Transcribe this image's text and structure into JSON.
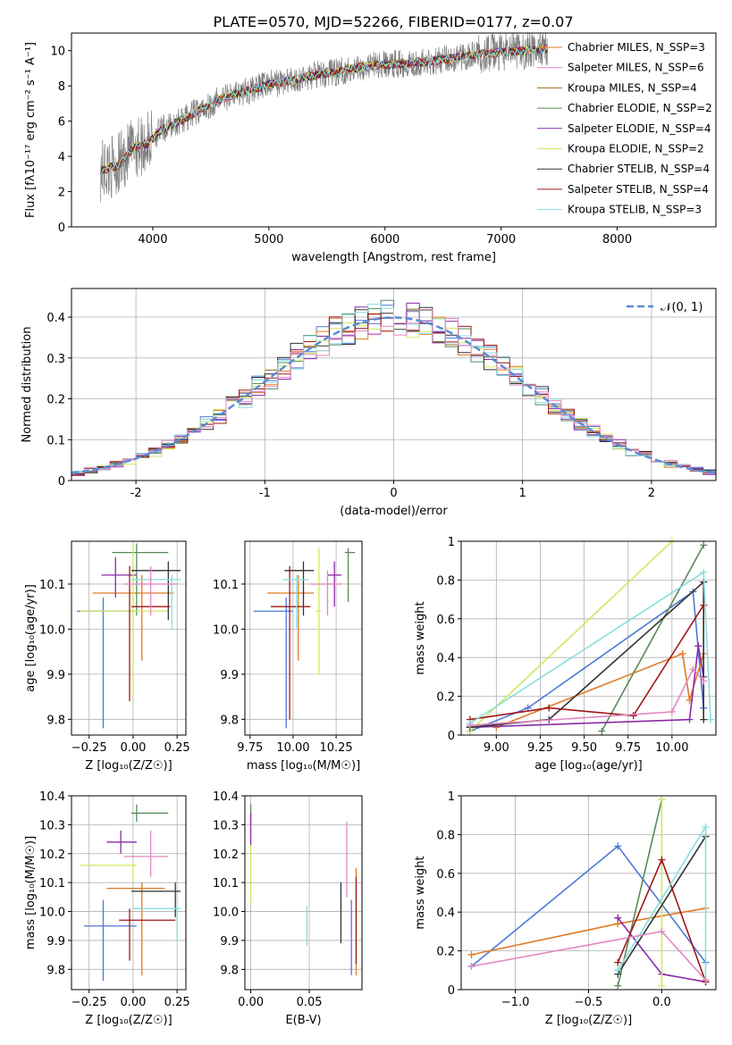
{
  "figure": {
    "title": "PLATE=0570, MJD=52266, FIBERID=0177, z=0.07"
  },
  "colors": [
    "#4f79d6",
    "#e07a24",
    "#5a8a5a",
    "#8a2aa8",
    "#d0e860",
    "#333333",
    "#a01818",
    "#88dede",
    "#e286c2"
  ],
  "legend_colors": [
    "#e07a24",
    "#e286c2",
    "#a86a1c",
    "#5a8a5a",
    "#8a2aa8",
    "#d0e860",
    "#333333",
    "#a01818",
    "#88dede"
  ],
  "chart_data": [
    {
      "id": "spectrum",
      "type": "line",
      "xlabel": "wavelength [Angstrom, rest frame]",
      "ylabel": "Flux [fλ10⁻¹⁷ erg cm⁻² s⁻¹ A⁻¹]",
      "xlim": [
        3300,
        8850
      ],
      "ylim": [
        0,
        11
      ],
      "xticks": [
        4000,
        5000,
        6000,
        7000,
        8000
      ],
      "yticks": [
        0,
        2,
        4,
        6,
        8,
        10
      ],
      "grid": false,
      "legend_position": "top-right",
      "legend": [
        "Chabrier MILES, N_SSP=3",
        "Salpeter MILES, N_SSP=6",
        "Kroupa MILES, N_SSP=4",
        "Chabrier ELODIE, N_SSP=2",
        "Salpeter ELODIE, N_SSP=4",
        "Kroupa ELODIE, N_SSP=2",
        "Chabrier STELIB, N_SSP=4",
        "Salpeter STELIB, N_SSP=4",
        "Kroupa STELIB, N_SSP=3"
      ],
      "continuum": [
        [
          3550,
          3.2
        ],
        [
          3700,
          3.5
        ],
        [
          3850,
          4.6
        ],
        [
          3950,
          4.7
        ],
        [
          4050,
          5.4
        ],
        [
          4200,
          5.9
        ],
        [
          4400,
          6.6
        ],
        [
          4600,
          7.3
        ],
        [
          4800,
          7.7
        ],
        [
          5000,
          8.1
        ],
        [
          5200,
          8.3
        ],
        [
          5400,
          8.6
        ],
        [
          5600,
          8.8
        ],
        [
          5800,
          9.1
        ],
        [
          6000,
          9.2
        ],
        [
          6200,
          9.3
        ],
        [
          6400,
          9.4
        ],
        [
          6600,
          9.6
        ],
        [
          6800,
          9.8
        ],
        [
          7000,
          9.9
        ],
        [
          7200,
          10.0
        ],
        [
          7400,
          10.1
        ]
      ]
    },
    {
      "id": "residuals",
      "type": "histogram",
      "xlabel": "(data-model)/error",
      "ylabel": "Normed distribution",
      "xlim": [
        -2.5,
        2.5
      ],
      "ylim": [
        0,
        0.47
      ],
      "xticks": [
        -2,
        -1,
        0,
        1,
        2
      ],
      "yticks": [
        0.0,
        0.1,
        0.2,
        0.3,
        0.4
      ],
      "grid": true,
      "legend_position": "top-right",
      "legend": [
        "𝒩(0, 1)"
      ],
      "reference_curve": {
        "name": "𝒩(0, 1)",
        "mean": 0,
        "sigma": 1,
        "style": "dashed",
        "color": "#5b8bd6"
      },
      "bin_width": 0.1
    },
    {
      "id": "age_vs_z",
      "type": "scatter_errorbar",
      "xlabel": "Z [log₁₀(Z/Z☉)]",
      "ylabel": "age  [log₁₀(age/yr)]",
      "xlim": [
        -0.35,
        0.3
      ],
      "ylim": [
        9.765,
        10.195
      ],
      "xticks": [
        -0.25,
        0.0,
        0.25
      ],
      "xtick_labels": [
        "−0.25",
        "0.00",
        "0.25"
      ],
      "yticks": [
        9.8,
        9.9,
        10.0,
        10.1
      ],
      "yticks_labels": [
        "9.8",
        "9.9",
        "10.0",
        "10.1"
      ],
      "grid": true,
      "points": [
        {
          "c": 0,
          "x": -0.17,
          "y": 10.04,
          "xlo": -0.32,
          "xhi": 0.02,
          "ylo": 9.78,
          "yhi": 10.07
        },
        {
          "c": 1,
          "x": 0.05,
          "y": 10.08,
          "xlo": -0.23,
          "xhi": 0.23,
          "ylo": 9.93,
          "yhi": 10.12
        },
        {
          "c": 2,
          "x": 0.02,
          "y": 10.17,
          "xlo": -0.12,
          "xhi": 0.2,
          "ylo": 10.03,
          "yhi": 10.19
        },
        {
          "c": 3,
          "x": -0.1,
          "y": 10.12,
          "xlo": -0.18,
          "xhi": 0.02,
          "ylo": 10.07,
          "yhi": 10.16
        },
        {
          "c": 4,
          "x": 0.0,
          "y": 10.04,
          "xlo": -0.3,
          "xhi": 0.2,
          "ylo": 9.85,
          "yhi": 10.19
        },
        {
          "c": 5,
          "x": 0.2,
          "y": 10.13,
          "xlo": -0.01,
          "xhi": 0.27,
          "ylo": 10.02,
          "yhi": 10.15
        },
        {
          "c": 6,
          "x": -0.02,
          "y": 10.05,
          "xlo": -0.01,
          "xhi": 0.21,
          "ylo": 9.84,
          "yhi": 10.14
        },
        {
          "c": 7,
          "x": 0.22,
          "y": 10.11,
          "xlo": -0.02,
          "xhi": 0.27,
          "ylo": 10.0,
          "yhi": 10.12
        },
        {
          "c": 8,
          "x": 0.1,
          "y": 10.1,
          "xlo": -0.05,
          "xhi": 0.25,
          "ylo": 10.03,
          "yhi": 10.14
        }
      ]
    },
    {
      "id": "age_vs_mass",
      "type": "scatter_errorbar",
      "xlabel": "mass [log₁₀(M/M☉)]",
      "ylabel": "",
      "xlim": [
        9.72,
        10.4
      ],
      "ylim": [
        9.765,
        10.195
      ],
      "xticks": [
        9.75,
        10.0,
        10.25
      ],
      "xtick_labels": [
        "9.75",
        "10.00",
        "10.25"
      ],
      "yticks": [
        9.8,
        9.9,
        10.0,
        10.1
      ],
      "yticks_labels": [
        "9.8",
        "9.9",
        "10.0",
        "10.1"
      ],
      "grid": true,
      "points": [
        {
          "c": 0,
          "x": 9.96,
          "y": 10.04,
          "xlo": 9.77,
          "xhi": 10.0,
          "ylo": 9.78,
          "yhi": 10.07
        },
        {
          "c": 1,
          "x": 10.03,
          "y": 10.08,
          "xlo": 9.85,
          "xhi": 10.12,
          "ylo": 9.93,
          "yhi": 10.12
        },
        {
          "c": 2,
          "x": 10.32,
          "y": 10.17,
          "xlo": 10.3,
          "xhi": 10.36,
          "ylo": 10.06,
          "yhi": 10.18
        },
        {
          "c": 3,
          "x": 10.24,
          "y": 10.12,
          "xlo": 10.2,
          "xhi": 10.28,
          "ylo": 10.05,
          "yhi": 10.15
        },
        {
          "c": 4,
          "x": 10.15,
          "y": 10.04,
          "xlo": 10.13,
          "xhi": 10.16,
          "ylo": 9.9,
          "yhi": 10.18
        },
        {
          "c": 5,
          "x": 10.06,
          "y": 10.13,
          "xlo": 9.95,
          "xhi": 10.12,
          "ylo": 10.03,
          "yhi": 10.15
        },
        {
          "c": 6,
          "x": 9.98,
          "y": 10.05,
          "xlo": 9.87,
          "xhi": 10.1,
          "ylo": 9.8,
          "yhi": 10.14
        },
        {
          "c": 7,
          "x": 10.02,
          "y": 10.11,
          "xlo": 9.94,
          "xhi": 10.09,
          "ylo": 10.0,
          "yhi": 10.12
        },
        {
          "c": 8,
          "x": 10.2,
          "y": 10.1,
          "xlo": 10.1,
          "xhi": 10.28,
          "ylo": 10.03,
          "yhi": 10.13
        }
      ]
    },
    {
      "id": "weight_vs_age",
      "type": "line",
      "xlabel": "age  [log₁₀(age/yr)]",
      "ylabel": "mass weight",
      "xlim": [
        8.8,
        10.25
      ],
      "ylim": [
        0,
        1
      ],
      "xticks": [
        9.0,
        9.25,
        9.5,
        9.75,
        10.0
      ],
      "xtick_labels": [
        "9.00",
        "9.25",
        "9.50",
        "9.75",
        "10.00"
      ],
      "yticks": [
        0.0,
        0.2,
        0.4,
        0.6,
        0.8,
        1.0
      ],
      "grid": true,
      "series": [
        {
          "c": 0,
          "points": [
            [
              8.85,
              0.02
            ],
            [
              9.18,
              0.14
            ],
            [
              10.12,
              0.74
            ],
            [
              10.18,
              0.14
            ]
          ]
        },
        {
          "c": 1,
          "points": [
            [
              9.0,
              0.04
            ],
            [
              10.06,
              0.42
            ],
            [
              10.1,
              0.18
            ],
            [
              10.18,
              0.42
            ]
          ]
        },
        {
          "c": 2,
          "points": [
            [
              9.6,
              0.02
            ],
            [
              10.18,
              0.98
            ]
          ]
        },
        {
          "c": 3,
          "points": [
            [
              8.85,
              0.04
            ],
            [
              10.1,
              0.08
            ],
            [
              10.15,
              0.46
            ],
            [
              10.18,
              0.3
            ]
          ]
        },
        {
          "c": 4,
          "points": [
            [
              8.85,
              0.02
            ],
            [
              10.0,
              1.0
            ]
          ]
        },
        {
          "c": 5,
          "points": [
            [
              8.85,
              0.04
            ],
            [
              9.3,
              0.08
            ],
            [
              10.18,
              0.79
            ],
            [
              10.18,
              0.08
            ]
          ]
        },
        {
          "c": 6,
          "points": [
            [
              8.85,
              0.08
            ],
            [
              9.3,
              0.14
            ],
            [
              9.78,
              0.1
            ],
            [
              10.18,
              0.67
            ]
          ]
        },
        {
          "c": 7,
          "points": [
            [
              8.85,
              0.06
            ],
            [
              10.18,
              0.84
            ],
            [
              10.22,
              0.08
            ]
          ]
        },
        {
          "c": 8,
          "points": [
            [
              8.85,
              0.05
            ],
            [
              10.0,
              0.12
            ],
            [
              10.12,
              0.34
            ],
            [
              10.18,
              0.28
            ]
          ]
        }
      ]
    },
    {
      "id": "mass_vs_z",
      "type": "scatter_errorbar",
      "xlabel": "Z [log₁₀(Z/Z☉)]",
      "ylabel": "mass [log₁₀(M/M☉)]",
      "xlim": [
        -0.35,
        0.3
      ],
      "ylim": [
        9.73,
        10.4
      ],
      "xticks": [
        -0.25,
        0.0,
        0.25
      ],
      "xtick_labels": [
        "−0.25",
        "0.00",
        "0.25"
      ],
      "yticks": [
        9.8,
        9.9,
        10.0,
        10.1,
        10.2,
        10.3,
        10.4
      ],
      "yticks_labels": [
        "9.8",
        "9.9",
        "10.0",
        "10.1",
        "10.2",
        "10.3",
        "10.4"
      ],
      "grid": true,
      "points": [
        {
          "c": 0,
          "x": -0.17,
          "y": 9.95,
          "xlo": -0.28,
          "xhi": 0.02,
          "ylo": 9.76,
          "yhi": 10.04
        },
        {
          "c": 1,
          "x": 0.05,
          "y": 10.08,
          "xlo": -0.15,
          "xhi": 0.18,
          "ylo": 9.78,
          "yhi": 10.1
        },
        {
          "c": 2,
          "x": 0.02,
          "y": 10.34,
          "xlo": -0.01,
          "xhi": 0.2,
          "ylo": 10.31,
          "yhi": 10.37
        },
        {
          "c": 3,
          "x": -0.07,
          "y": 10.24,
          "xlo": -0.15,
          "xhi": 0.02,
          "ylo": 10.2,
          "yhi": 10.28
        },
        {
          "c": 4,
          "x": 0.0,
          "y": 10.16,
          "xlo": -0.3,
          "xhi": 0.02,
          "ylo": 10.1,
          "yhi": 10.17
        },
        {
          "c": 5,
          "x": 0.24,
          "y": 10.07,
          "xlo": -0.01,
          "xhi": 0.27,
          "ylo": 9.98,
          "yhi": 10.1
        },
        {
          "c": 6,
          "x": -0.02,
          "y": 9.97,
          "xlo": -0.08,
          "xhi": 0.24,
          "ylo": 9.83,
          "yhi": 10.01
        },
        {
          "c": 7,
          "x": 0.25,
          "y": 10.01,
          "xlo": 0.0,
          "xhi": 0.27,
          "ylo": 9.9,
          "yhi": 10.02
        },
        {
          "c": 8,
          "x": 0.1,
          "y": 10.19,
          "xlo": -0.05,
          "xhi": 0.2,
          "ylo": 10.12,
          "yhi": 10.28
        }
      ]
    },
    {
      "id": "mass_vs_ebv",
      "type": "scatter_errorbar",
      "xlabel": "E(B-V)",
      "ylabel": "",
      "xlim": [
        -0.005,
        0.095
      ],
      "ylim": [
        9.73,
        10.4
      ],
      "xticks": [
        0.0,
        0.05
      ],
      "xtick_labels": [
        "0.00",
        "0.05"
      ],
      "yticks": [
        9.8,
        9.9,
        10.0,
        10.1,
        10.2,
        10.3,
        10.4
      ],
      "yticks_labels": [
        "9.8",
        "9.9",
        "10.0",
        "10.1",
        "10.2",
        "10.3",
        "10.4"
      ],
      "grid": true,
      "points": [
        {
          "c": 0,
          "x": 0.086,
          "y": 9.9,
          "xlo": 0.086,
          "xhi": 0.086,
          "ylo": 9.78,
          "yhi": 10.04
        },
        {
          "c": 1,
          "x": 0.09,
          "y": 10.0,
          "xlo": 0.09,
          "xhi": 0.09,
          "ylo": 9.78,
          "yhi": 10.15
        },
        {
          "c": 2,
          "x": 0.0,
          "y": 10.33,
          "xlo": 0.0,
          "xhi": 0.0,
          "ylo": 10.3,
          "yhi": 10.37
        },
        {
          "c": 3,
          "x": 0.0,
          "y": 10.3,
          "xlo": 0.0,
          "xhi": 0.0,
          "ylo": 10.23,
          "yhi": 10.34
        },
        {
          "c": 4,
          "x": 0.0,
          "y": 10.15,
          "xlo": 0.0,
          "xhi": 0.0,
          "ylo": 10.03,
          "yhi": 10.23
        },
        {
          "c": 5,
          "x": 0.077,
          "y": 10.0,
          "xlo": 0.077,
          "xhi": 0.077,
          "ylo": 9.89,
          "yhi": 10.1
        },
        {
          "c": 6,
          "x": 0.09,
          "y": 9.95,
          "xlo": 0.09,
          "xhi": 0.09,
          "ylo": 9.82,
          "yhi": 10.12
        },
        {
          "c": 7,
          "x": 0.048,
          "y": 9.95,
          "xlo": 0.048,
          "xhi": 0.048,
          "ylo": 9.88,
          "yhi": 10.02
        },
        {
          "c": 8,
          "x": 0.082,
          "y": 10.23,
          "xlo": 0.082,
          "xhi": 0.082,
          "ylo": 10.05,
          "yhi": 10.31
        }
      ]
    },
    {
      "id": "weight_vs_z",
      "type": "line",
      "xlabel": "Z [log₁₀(Z/Z☉)]",
      "ylabel": "mass weight",
      "xlim": [
        -1.37,
        0.37
      ],
      "ylim": [
        0,
        1
      ],
      "xticks": [
        -1.0,
        -0.5,
        0.0
      ],
      "xtick_labels": [
        "−1.0",
        "−0.5",
        "0.0"
      ],
      "yticks": [
        0.0,
        0.2,
        0.4,
        0.6,
        0.8,
        1.0
      ],
      "grid": true,
      "series": [
        {
          "c": 0,
          "points": [
            [
              -1.3,
              0.12
            ],
            [
              -0.3,
              0.74
            ],
            [
              0.3,
              0.14
            ]
          ]
        },
        {
          "c": 1,
          "points": [
            [
              -1.3,
              0.18
            ],
            [
              -0.3,
              0.34
            ],
            [
              0.3,
              0.42
            ]
          ]
        },
        {
          "c": 2,
          "points": [
            [
              -0.3,
              0.02
            ],
            [
              0.0,
              0.98
            ]
          ]
        },
        {
          "c": 3,
          "points": [
            [
              -0.3,
              0.37
            ],
            [
              0.0,
              0.08
            ],
            [
              0.3,
              0.04
            ]
          ]
        },
        {
          "c": 4,
          "points": [
            [
              0.0,
              0.98
            ],
            [
              0.0,
              0.02
            ]
          ]
        },
        {
          "c": 5,
          "points": [
            [
              -0.3,
              0.08
            ],
            [
              0.3,
              0.79
            ]
          ]
        },
        {
          "c": 6,
          "points": [
            [
              -0.3,
              0.14
            ],
            [
              0.0,
              0.67
            ],
            [
              0.3,
              0.04
            ]
          ]
        },
        {
          "c": 7,
          "points": [
            [
              -0.3,
              0.1
            ],
            [
              0.3,
              0.84
            ],
            [
              0.3,
              0.05
            ]
          ]
        },
        {
          "c": 8,
          "points": [
            [
              -1.3,
              0.12
            ],
            [
              0.0,
              0.3
            ],
            [
              0.3,
              0.05
            ]
          ]
        }
      ]
    }
  ]
}
